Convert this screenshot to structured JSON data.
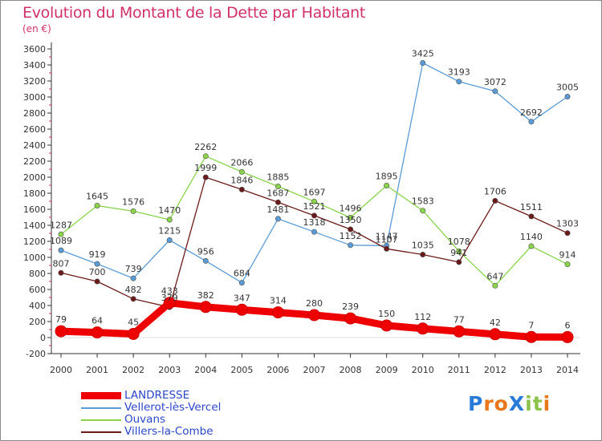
{
  "title": "Evolution du Montant de la Dette par Habitant",
  "unit": "(en €)",
  "logo": "ProXiti",
  "chart_data": {
    "type": "line",
    "x": [
      "2000",
      "2001",
      "2002",
      "2003",
      "2004",
      "2005",
      "2006",
      "2007",
      "2008",
      "2009",
      "2010",
      "2011",
      "2012",
      "2013",
      "2014"
    ],
    "yticks": [
      -200,
      0,
      200,
      400,
      600,
      800,
      1000,
      1200,
      1400,
      1600,
      1800,
      2000,
      2200,
      2400,
      2600,
      2800,
      3000,
      3200,
      3400,
      3600
    ],
    "ylim": [
      -200,
      3600
    ],
    "grid": false,
    "legend_position": "bottom-left",
    "series": [
      {
        "name": "LANDRESSE",
        "color": "#ee0000",
        "width": 9,
        "values": [
          79,
          64,
          45,
          433,
          382,
          347,
          314,
          280,
          239,
          150,
          112,
          77,
          42,
          7,
          6
        ]
      },
      {
        "name": "Vellerot-lès-Vercel",
        "color": "#5b9bd5",
        "width": 1.3,
        "values": [
          1089,
          919,
          739,
          1215,
          956,
          684,
          1481,
          1318,
          1152,
          1147,
          3425,
          3193,
          3072,
          2692,
          3005
        ]
      },
      {
        "name": "Ouvans",
        "color": "#8bd34a",
        "width": 1.3,
        "values": [
          1287,
          1645,
          1576,
          1470,
          2262,
          2066,
          1885,
          1697,
          1496,
          1895,
          1583,
          1078,
          647,
          1140,
          914
        ]
      },
      {
        "name": "Villers-la-Combe",
        "color": "#6b1a1a",
        "width": 1.3,
        "values": [
          807,
          700,
          482,
          379,
          1999,
          1846,
          1687,
          1521,
          1350,
          1107,
          1035,
          941,
          1706,
          1511,
          1303
        ]
      }
    ]
  }
}
